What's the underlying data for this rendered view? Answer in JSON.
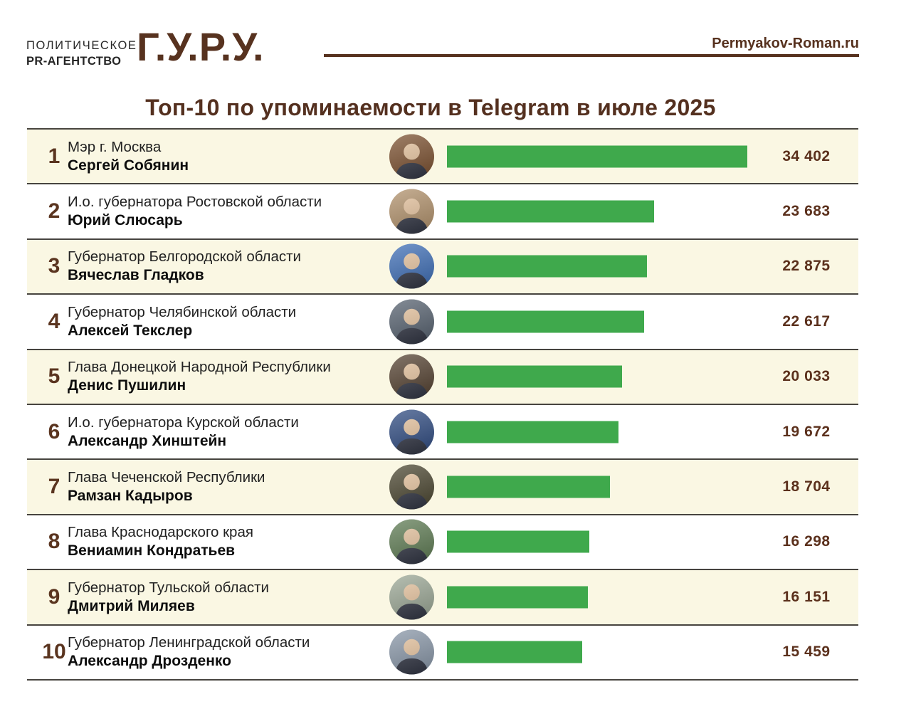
{
  "header": {
    "agency_line1": "ПОЛИТИЧЕСКОЕ",
    "agency_line2": "PR-АГЕНТСТВО",
    "logo": "Г.У.Р.У.",
    "site": "Permyakov-Roman.ru"
  },
  "title": "Топ-10 по упоминаемости в Telegram в июле 2025",
  "colors": {
    "brand_brown": "#57321F",
    "title_brown": "#54301F",
    "value_brown": "#5B301C",
    "bar_green": "#3FA94C",
    "row_cream": "#FAF7E3",
    "row_white": "#FFFFFF",
    "divider": "#47443F"
  },
  "chart_data": {
    "type": "bar",
    "orientation": "horizontal",
    "title": "Топ-10 по упоминаемости в Telegram в июле 2025",
    "bar_color": "#3FA94C",
    "value_labels_visible": true,
    "axes_visible": false,
    "max_value": 34402,
    "categories": [
      "Сергей Собянин",
      "Юрий Слюсарь",
      "Вячеслав Гладков",
      "Алексей Текслер",
      "Денис Пушилин",
      "Александр Хинштейн",
      "Рамзан Кадыров",
      "Вениамин Кондратьев",
      "Дмитрий Миляев",
      "Александр Дрозденко"
    ],
    "values": [
      34402,
      23683,
      22875,
      22617,
      20033,
      19672,
      18704,
      16298,
      16151,
      15459
    ],
    "entries": [
      {
        "rank": "1",
        "position": "Мэр г. Москва",
        "name": "Сергей Собянин",
        "value": 34402,
        "label": "34 402",
        "avatar_color": "#7A4F2E"
      },
      {
        "rank": "2",
        "position": "И.о. губернатора Ростовской области",
        "name": "Юрий Слюсарь",
        "value": 23683,
        "label": "23 683",
        "avatar_color": "#B0906A"
      },
      {
        "rank": "3",
        "position": "Губернатор Белгородской области",
        "name": "Вячеслав Гладков",
        "value": 22875,
        "label": "22 875",
        "avatar_color": "#3D6DB5"
      },
      {
        "rank": "4",
        "position": "Губернатор Челябинской области",
        "name": "Алексей Текслер",
        "value": 22617,
        "label": "22 617",
        "avatar_color": "#55606E"
      },
      {
        "rank": "5",
        "position": "Глава Донецкой Народной Республики",
        "name": "Денис Пушилин",
        "value": 20033,
        "label": "20 033",
        "avatar_color": "#53402F"
      },
      {
        "rank": "6",
        "position": "И.о. губернатора Курской области",
        "name": "Александр Хинштейн",
        "value": 19672,
        "label": "19 672",
        "avatar_color": "#2E4A80"
      },
      {
        "rank": "7",
        "position": "Глава Чеченской Республики",
        "name": "Рамзан Кадыров",
        "value": 18704,
        "label": "18 704",
        "avatar_color": "#4A452F"
      },
      {
        "rank": "8",
        "position": "Глава Краснодарского края",
        "name": "Вениамин Кондратьев",
        "value": 16298,
        "label": "16 298",
        "avatar_color": "#5D7A52"
      },
      {
        "rank": "9",
        "position": "Губернатор Тульской области",
        "name": "Дмитрий Миляев",
        "value": 16151,
        "label": "16 151",
        "avatar_color": "#9AA694"
      },
      {
        "rank": "10",
        "position": "Губернатор Ленинградской области",
        "name": "Александр Дрозденко",
        "value": 15459,
        "label": "15 459",
        "avatar_color": "#8795A6"
      }
    ]
  }
}
